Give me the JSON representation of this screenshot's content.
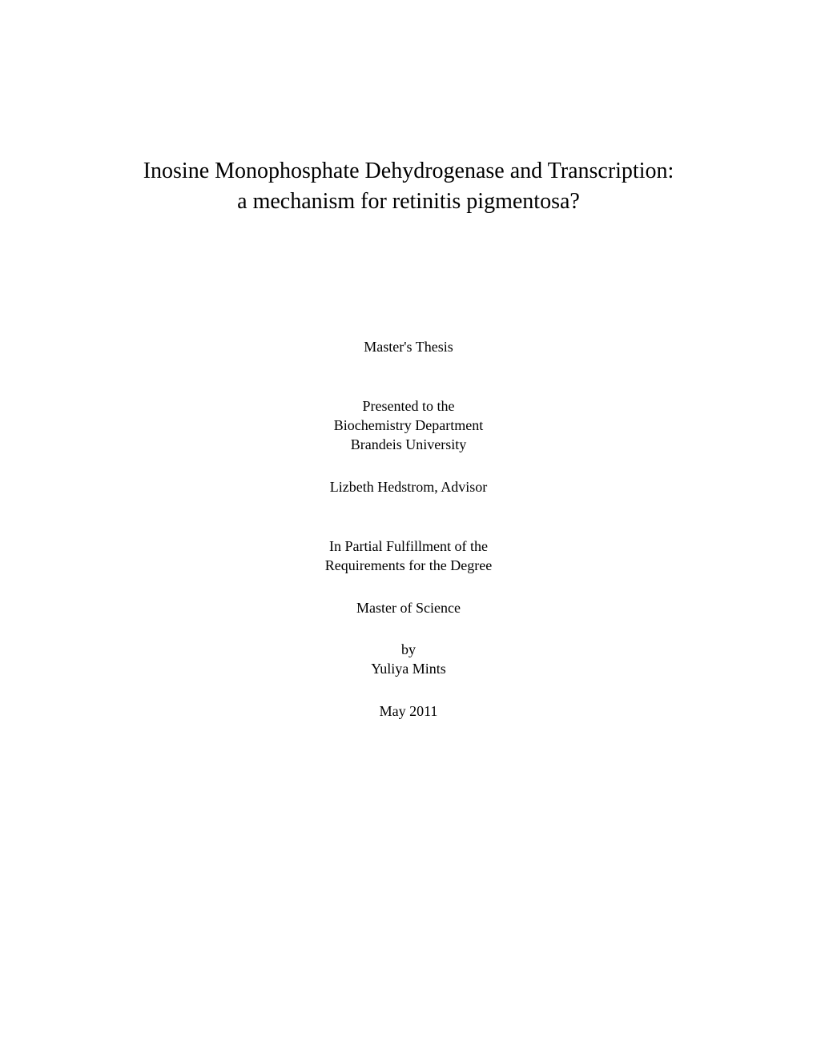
{
  "title": {
    "line1": "Inosine Monophosphate Dehydrogenase and Transcription:",
    "line2": "a mechanism for retinitis pigmentosa?"
  },
  "body": {
    "thesis_type": "Master's Thesis",
    "presented_to": "Presented to the",
    "department": "Biochemistry Department",
    "university": "Brandeis University",
    "advisor": "Lizbeth Hedstrom, Advisor",
    "fulfillment_line1": "In Partial Fulfillment of the",
    "fulfillment_line2": "Requirements for the Degree",
    "degree": "Master of Science",
    "by": "by",
    "author": "Yuliya Mints",
    "date": "May 2011"
  },
  "style": {
    "background_color": "#ffffff",
    "text_color": "#000000",
    "title_fontsize": 28,
    "body_fontsize": 18,
    "font_family": "Times New Roman"
  }
}
